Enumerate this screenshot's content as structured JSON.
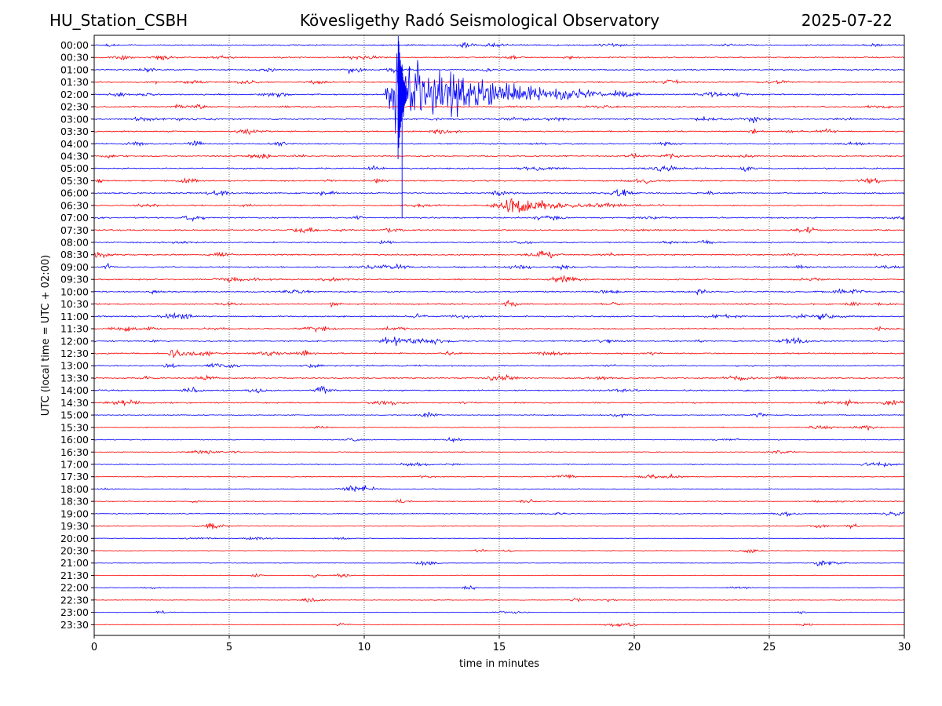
{
  "header": {
    "station": "HU_Station_CSBH",
    "title": "Kövesligethy Radó Seismological Observatory",
    "date": "2025-07-22"
  },
  "chart_data": {
    "type": "line",
    "title": "Kövesligethy Radó Seismological Observatory",
    "xlabel": "time in minutes",
    "ylabel": "UTC (local time = UTC + 02:00)",
    "xlim": [
      0,
      30
    ],
    "xticks": [
      0,
      5,
      10,
      15,
      20,
      25,
      30
    ],
    "grid": "vertical dotted at x ticks",
    "colors": {
      "even_hour": "#0000ff",
      "half_hour": "#ff0000"
    },
    "rows": [
      "00:00",
      "00:30",
      "01:00",
      "01:30",
      "02:00",
      "02:30",
      "03:00",
      "03:30",
      "04:00",
      "04:30",
      "05:00",
      "05:30",
      "06:00",
      "06:30",
      "07:00",
      "07:30",
      "08:00",
      "08:30",
      "09:00",
      "09:30",
      "10:00",
      "10:30",
      "11:00",
      "11:30",
      "12:00",
      "12:30",
      "13:00",
      "13:30",
      "14:00",
      "14:30",
      "15:00",
      "15:30",
      "16:00",
      "16:30",
      "17:00",
      "17:30",
      "18:00",
      "18:30",
      "19:00",
      "19:30",
      "20:00",
      "20:30",
      "21:00",
      "21:30",
      "22:00",
      "22:30",
      "23:00",
      "23:30"
    ],
    "events": [
      {
        "row": "02:00",
        "start_min": 10.7,
        "duration_min": 9.5,
        "peak_amplitude_rows": 4.5,
        "note": "main earthquake"
      },
      {
        "row": "06:30",
        "start_min": 15.2,
        "duration_min": 6.0,
        "peak_amplitude_rows": 0.7
      },
      {
        "row": "08:30",
        "start_min": 0.0,
        "duration_min": 1.2,
        "peak_amplitude_rows": 0.5
      },
      {
        "row": "12:30",
        "start_min": 2.7,
        "duration_min": 1.6,
        "peak_amplitude_rows": 0.6
      },
      {
        "row": "12:00",
        "start_min": 10.5,
        "duration_min": 3.2,
        "peak_amplitude_rows": 0.3
      },
      {
        "row": "03:00",
        "start_min": 1.3,
        "duration_min": 4.5,
        "peak_amplitude_rows": 0.2
      },
      {
        "row": "05:00",
        "start_min": 21.2,
        "duration_min": 1.5,
        "peak_amplitude_rows": 0.3
      },
      {
        "row": "10:30",
        "start_min": 8.7,
        "duration_min": 0.6,
        "peak_amplitude_rows": 0.45
      },
      {
        "row": "11:00",
        "start_min": 26.8,
        "duration_min": 1.5,
        "peak_amplitude_rows": 0.35
      },
      {
        "row": "11:30",
        "start_min": 28.9,
        "duration_min": 1.1,
        "peak_amplitude_rows": 0.3
      },
      {
        "row": "13:30",
        "start_min": 25.2,
        "duration_min": 1.0,
        "peak_amplitude_rows": 0.35
      },
      {
        "row": "17:30",
        "start_min": 12.0,
        "duration_min": 1.3,
        "peak_amplitude_rows": 0.15
      },
      {
        "row": "18:30",
        "start_min": 26.5,
        "duration_min": 3.5,
        "peak_amplitude_rows": 0.12
      },
      {
        "row": "01:00",
        "start_min": 9.4,
        "duration_min": 0.5,
        "peak_amplitude_rows": 0.5
      },
      {
        "row": "09:00",
        "start_min": 26.0,
        "duration_min": 0.6,
        "peak_amplitude_rows": 0.35
      }
    ]
  }
}
